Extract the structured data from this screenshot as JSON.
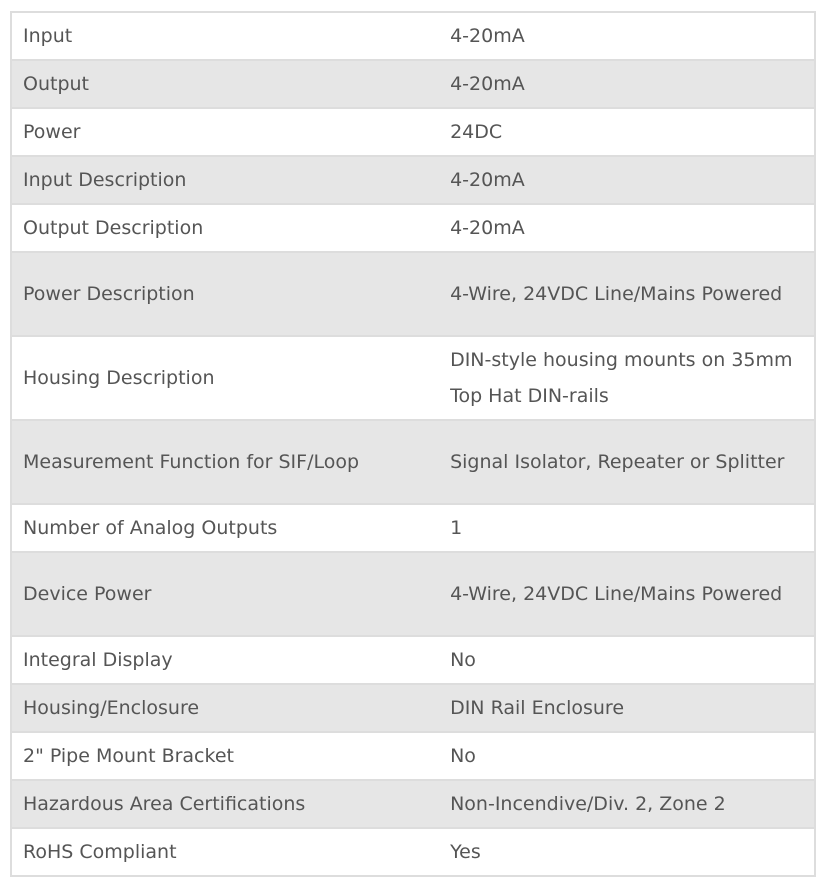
{
  "specs": [
    {
      "label": "Input",
      "value": "4-20mA"
    },
    {
      "label": "Output",
      "value": "4-20mA"
    },
    {
      "label": "Power",
      "value": "24DC"
    },
    {
      "label": "Input Description",
      "value": "4-20mA"
    },
    {
      "label": "Output Description",
      "value": "4-20mA"
    },
    {
      "label": "Power Description",
      "value": "4-Wire, 24VDC Line/Mains Powered"
    },
    {
      "label": "Housing Description",
      "value": "DIN-style housing mounts on 35mm Top Hat DIN-rails"
    },
    {
      "label": "Measurement Function for SIF/Loop",
      "value": "Signal Isolator, Repeater or Splitter"
    },
    {
      "label": "Number of Analog Outputs",
      "value": "1"
    },
    {
      "label": "Device Power",
      "value": "4-Wire, 24VDC Line/Mains Powered"
    },
    {
      "label": "Integral Display",
      "value": "No"
    },
    {
      "label": "Housing/Enclosure",
      "value": "DIN Rail Enclosure"
    },
    {
      "label": "2\" Pipe Mount Bracket",
      "value": "No"
    },
    {
      "label": "Hazardous Area Certifications",
      "value": "Non-Incendive/Div. 2, Zone 2"
    },
    {
      "label": "RoHS Compliant",
      "value": "Yes"
    }
  ]
}
